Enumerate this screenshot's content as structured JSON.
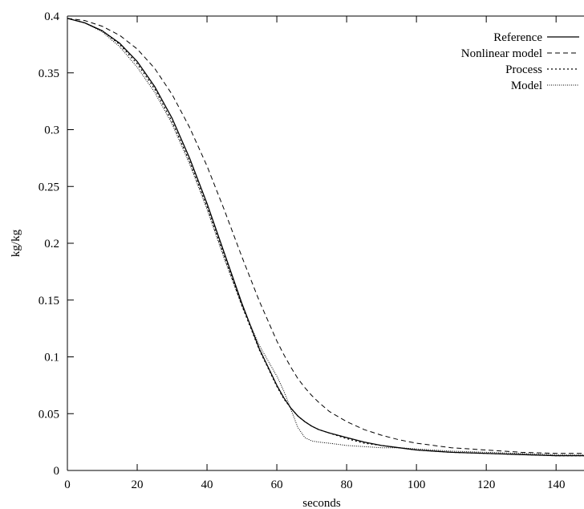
{
  "chart_data": {
    "type": "line",
    "xlabel": "seconds",
    "ylabel": "kg/kg",
    "xlim": [
      0,
      148
    ],
    "ylim": [
      0,
      0.4
    ],
    "x_ticks": [
      0,
      20,
      40,
      60,
      80,
      100,
      120,
      140
    ],
    "x_tick_labels": [
      "0",
      "20",
      "40",
      "60",
      "80",
      "100",
      "120",
      "140"
    ],
    "y_ticks": [
      0,
      0.05,
      0.1,
      0.15,
      0.2,
      0.25,
      0.3,
      0.35,
      0.4
    ],
    "y_tick_labels": [
      "0",
      "0.05",
      "0.1",
      "0.15",
      "0.2",
      "0.25",
      "0.3",
      "0.35",
      "0.4"
    ],
    "grid": false,
    "legend_position": "top-right",
    "x": [
      0,
      5,
      10,
      15,
      20,
      25,
      30,
      35,
      40,
      45,
      50,
      55,
      60,
      62,
      64,
      66,
      68,
      70,
      72,
      75,
      80,
      85,
      90,
      95,
      100,
      105,
      110,
      120,
      130,
      140,
      148
    ],
    "series": [
      {
        "name": "Reference",
        "style": "solid",
        "values": [
          0.398,
          0.394,
          0.387,
          0.376,
          0.36,
          0.338,
          0.31,
          0.275,
          0.235,
          0.191,
          0.147,
          0.107,
          0.075,
          0.064,
          0.055,
          0.048,
          0.043,
          0.039,
          0.036,
          0.033,
          0.029,
          0.025,
          0.022,
          0.02,
          0.018,
          0.017,
          0.016,
          0.015,
          0.014,
          0.013,
          0.013
        ]
      },
      {
        "name": "Nonlinear model",
        "style": "dashed",
        "values": [
          0.398,
          0.396,
          0.391,
          0.383,
          0.371,
          0.354,
          0.331,
          0.302,
          0.268,
          0.229,
          0.188,
          0.149,
          0.114,
          0.102,
          0.091,
          0.081,
          0.073,
          0.066,
          0.06,
          0.052,
          0.043,
          0.036,
          0.031,
          0.027,
          0.024,
          0.022,
          0.02,
          0.018,
          0.016,
          0.015,
          0.015
        ]
      },
      {
        "name": "Process",
        "style": "dotted",
        "values": [
          0.398,
          0.394,
          0.387,
          0.375,
          0.358,
          0.336,
          0.307,
          0.272,
          0.232,
          0.188,
          0.145,
          0.106,
          0.074,
          0.063,
          0.055,
          0.048,
          0.043,
          0.039,
          0.036,
          0.033,
          0.028,
          0.024,
          0.022,
          0.02,
          0.018,
          0.017,
          0.016,
          0.015,
          0.014,
          0.013,
          0.013
        ]
      },
      {
        "name": "Model",
        "style": "fine-dotted",
        "values": [
          0.398,
          0.394,
          0.386,
          0.373,
          0.355,
          0.333,
          0.305,
          0.27,
          0.23,
          0.186,
          0.145,
          0.11,
          0.083,
          0.07,
          0.054,
          0.038,
          0.029,
          0.026,
          0.025,
          0.024,
          0.022,
          0.021,
          0.02,
          0.02,
          0.019,
          0.018,
          0.017,
          0.016,
          0.015,
          0.014,
          0.014
        ]
      }
    ]
  }
}
